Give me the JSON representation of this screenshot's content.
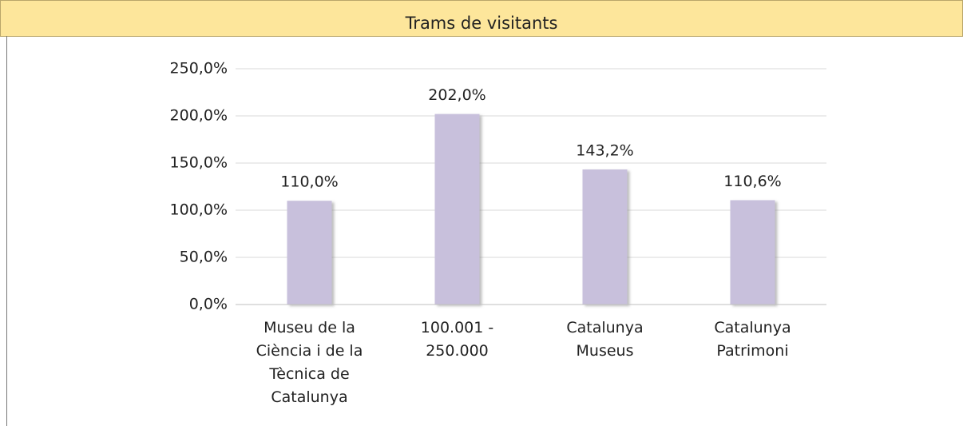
{
  "chart_data": {
    "type": "bar",
    "title": "Trams de visitants",
    "categories": [
      "Museu de la Ciència i de la Tècnica de Catalunya",
      "100.001 - 250.000",
      "Catalunya Museus",
      "Catalunya Patrimoni"
    ],
    "values": [
      110.0,
      202.0,
      143.2,
      110.6
    ],
    "value_labels": [
      "110,0%",
      "202,0%",
      "143,2%",
      "110,6%"
    ],
    "color": "#c8c0dc",
    "ylim": [
      0,
      250
    ],
    "yticks": [
      {
        "value": 0,
        "label": "0,0%"
      },
      {
        "value": 50,
        "label": "50,0%"
      },
      {
        "value": 100,
        "label": "100,0%"
      },
      {
        "value": 150,
        "label": "150,0%"
      },
      {
        "value": 200,
        "label": "200,0%"
      },
      {
        "value": 250,
        "label": "250,0%"
      }
    ],
    "grid": true
  }
}
